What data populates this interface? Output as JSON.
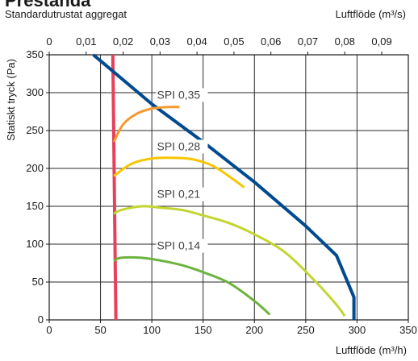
{
  "header": {
    "title": "Prestanda",
    "subtitle": "Standardutrustat aggregat",
    "top_axis_unit": "Luftflöde (m³/s)",
    "bottom_axis_unit": "Luftflöde (m³/h)"
  },
  "chart_data": {
    "type": "line",
    "title": "Prestanda",
    "subtitle": "Standardutrustat aggregat",
    "xlabel": "Luftflöde (m³/h)",
    "x2label": "Luftflöde (m³/s)",
    "ylabel": "Statiskt tryck (Pa)",
    "xlim": [
      0,
      350
    ],
    "ylim": [
      0,
      350
    ],
    "x2lim": [
      0,
      0.0972
    ],
    "x_ticks": [
      "0",
      "50",
      "100",
      "150",
      "200",
      "250",
      "300",
      "350"
    ],
    "x_tick_values": [
      0,
      50,
      100,
      150,
      200,
      250,
      300,
      350
    ],
    "x2_ticks": [
      "0",
      "0,01",
      "0,02",
      "0,03",
      "0,04",
      "0,05",
      "0,06",
      "0,07",
      "0,08",
      "0,09"
    ],
    "x2_tick_values": [
      0,
      0.01,
      0.02,
      0.03,
      0.04,
      0.05,
      0.06,
      0.07,
      0.08,
      0.09
    ],
    "y_ticks": [
      "0",
      "50",
      "100",
      "150",
      "200",
      "250",
      "300",
      "350"
    ],
    "y_tick_values": [
      0,
      50,
      100,
      150,
      200,
      250,
      300,
      350
    ],
    "grid": true,
    "series": [
      {
        "key": "min",
        "color": "#e8405a",
        "width": 4,
        "x": [
          62,
          63,
          64,
          65
        ],
        "y": [
          350,
          230,
          110,
          0
        ]
      },
      {
        "key": "max",
        "color": "#004a8f",
        "width": 4,
        "x": [
          43,
          100,
          150,
          200,
          250,
          280,
          297,
          297
        ],
        "y": [
          350,
          285,
          235,
          182,
          124,
          85,
          30,
          0
        ]
      },
      {
        "name": "SPI 0,35",
        "color": "#f39a30",
        "width": 3,
        "x": [
          63,
          72,
          85,
          100,
          115,
          127
        ],
        "y": [
          235,
          258,
          272,
          279,
          281,
          281
        ]
      },
      {
        "name": "SPI 0,28",
        "color": "#f7c600",
        "width": 3,
        "x": [
          63,
          80,
          100,
          120,
          140,
          160,
          180,
          190
        ],
        "y": [
          190,
          206,
          213,
          214,
          212,
          203,
          185,
          175
        ]
      },
      {
        "name": "SPI 0,21",
        "color": "#c3d630",
        "width": 3,
        "x": [
          63,
          70,
          90,
          110,
          130,
          150,
          175,
          200,
          230,
          260,
          280,
          288
        ],
        "y": [
          140,
          145,
          150,
          148,
          145,
          138,
          128,
          113,
          89,
          50,
          20,
          5
        ]
      },
      {
        "name": "SPI 0,14",
        "color": "#6cb33f",
        "width": 3,
        "x": [
          63,
          70,
          90,
          110,
          130,
          150,
          175,
          200,
          215
        ],
        "y": [
          78,
          82,
          82,
          78,
          72,
          63,
          49,
          25,
          7
        ]
      }
    ],
    "annotations": [
      {
        "text": "SPI 0,35",
        "x": 105,
        "y": 292
      },
      {
        "text": "SPI 0,28",
        "x": 105,
        "y": 224
      },
      {
        "text": "SPI 0,21",
        "x": 105,
        "y": 161
      },
      {
        "text": "SPI 0,14",
        "x": 105,
        "y": 93
      }
    ]
  }
}
